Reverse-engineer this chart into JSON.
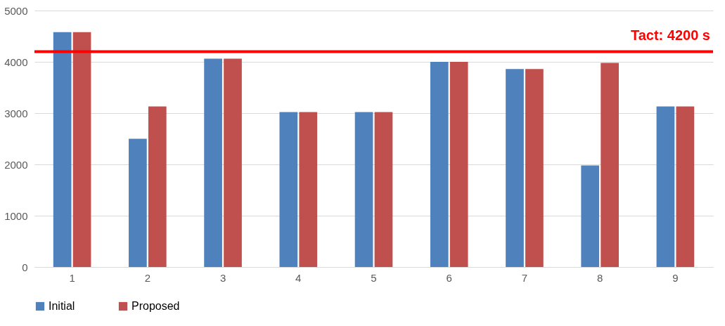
{
  "chart_data": {
    "type": "bar",
    "categories": [
      "1",
      "2",
      "3",
      "4",
      "5",
      "6",
      "7",
      "8",
      "9"
    ],
    "series": [
      {
        "name": "Initial",
        "color": "#4f81bd",
        "values": [
          4580,
          2500,
          4060,
          3020,
          3020,
          4000,
          3860,
          1980,
          3130
        ]
      },
      {
        "name": "Proposed",
        "color": "#c0504d",
        "values": [
          4580,
          3130,
          4060,
          3020,
          3020,
          4000,
          3860,
          3980,
          3130
        ]
      }
    ],
    "ylim": [
      0,
      5000
    ],
    "yticks": [
      0,
      1000,
      2000,
      3000,
      4000,
      5000
    ],
    "grid": "y",
    "legend": "bottom",
    "ref_lines": [
      {
        "axis": "y",
        "value": 4200,
        "label": "Tact: 4200 s",
        "color": "#ff0000"
      }
    ]
  }
}
